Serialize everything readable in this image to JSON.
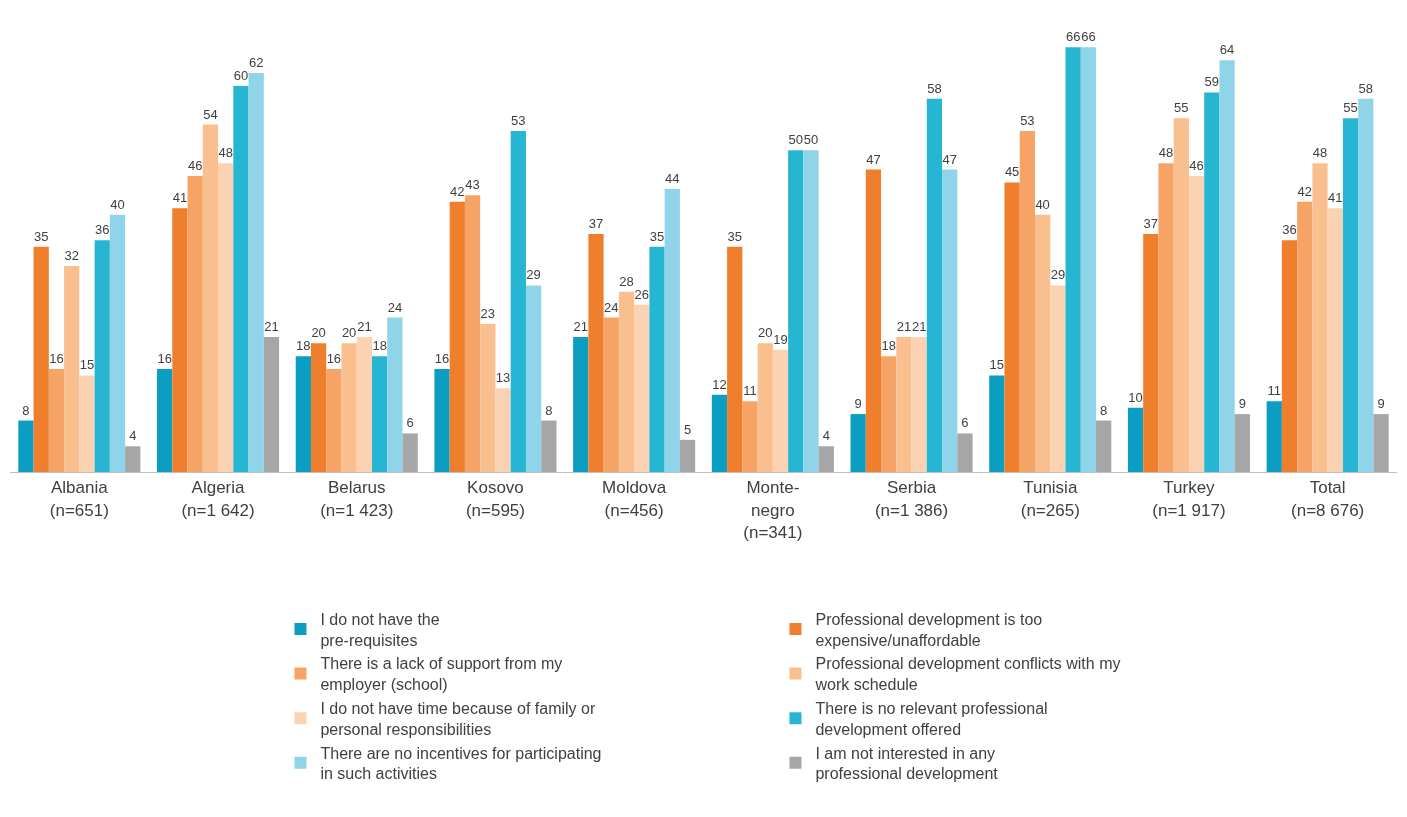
{
  "chart_data": {
    "type": "bar",
    "categories": [
      "Albania\n(n=651)",
      "Algeria\n(n=1 642)",
      "Belarus\n(n=1 423)",
      "Kosovo\n(n=595)",
      "Moldova\n(n=456)",
      "Monte-\nnegro\n(n=341)",
      "Serbia\n(n=1 386)",
      "Tunisia\n(n=265)",
      "Turkey\n(n=1 917)",
      "Total\n(n=8 676)"
    ],
    "series": [
      {
        "name": "I do not have the\npre-requisites",
        "color": "#0b9dc2",
        "values": [
          8,
          16,
          18,
          16,
          21,
          12,
          9,
          15,
          10,
          11
        ]
      },
      {
        "name": "Professional development is too\nexpensive/unaffordable",
        "color": "#f07f2d",
        "values": [
          35,
          41,
          20,
          42,
          37,
          35,
          47,
          45,
          37,
          36
        ]
      },
      {
        "name": "There is a lack of support from my\nemployer (school)",
        "color": "#f5a466",
        "values": [
          16,
          46,
          16,
          43,
          24,
          11,
          18,
          53,
          48,
          42
        ]
      },
      {
        "name": "Professional development conflicts with my\nwork schedule",
        "color": "#f9bf8e",
        "values": [
          32,
          54,
          20,
          23,
          28,
          20,
          21,
          40,
          55,
          48
        ]
      },
      {
        "name": "I do not have time because of family or\npersonal responsibilities",
        "color": "#fbd3b2",
        "values": [
          15,
          48,
          21,
          13,
          26,
          19,
          21,
          29,
          46,
          41
        ]
      },
      {
        "name": "There is no relevant professional\ndevelopment offered",
        "color": "#27b5d4",
        "values": [
          36,
          60,
          18,
          53,
          35,
          50,
          58,
          66,
          59,
          55
        ]
      },
      {
        "name": "There are no incentives for participating\nin such activities",
        "color": "#8fd4e8",
        "values": [
          40,
          62,
          24,
          29,
          44,
          50,
          47,
          66,
          64,
          58
        ]
      },
      {
        "name": "I am not interested in any\nprofessional development",
        "color": "#a6a6a8",
        "values": [
          4,
          21,
          6,
          8,
          5,
          4,
          6,
          8,
          9,
          9
        ]
      }
    ],
    "data_labels": true,
    "legend": "bottom",
    "tick_labels": "x"
  }
}
